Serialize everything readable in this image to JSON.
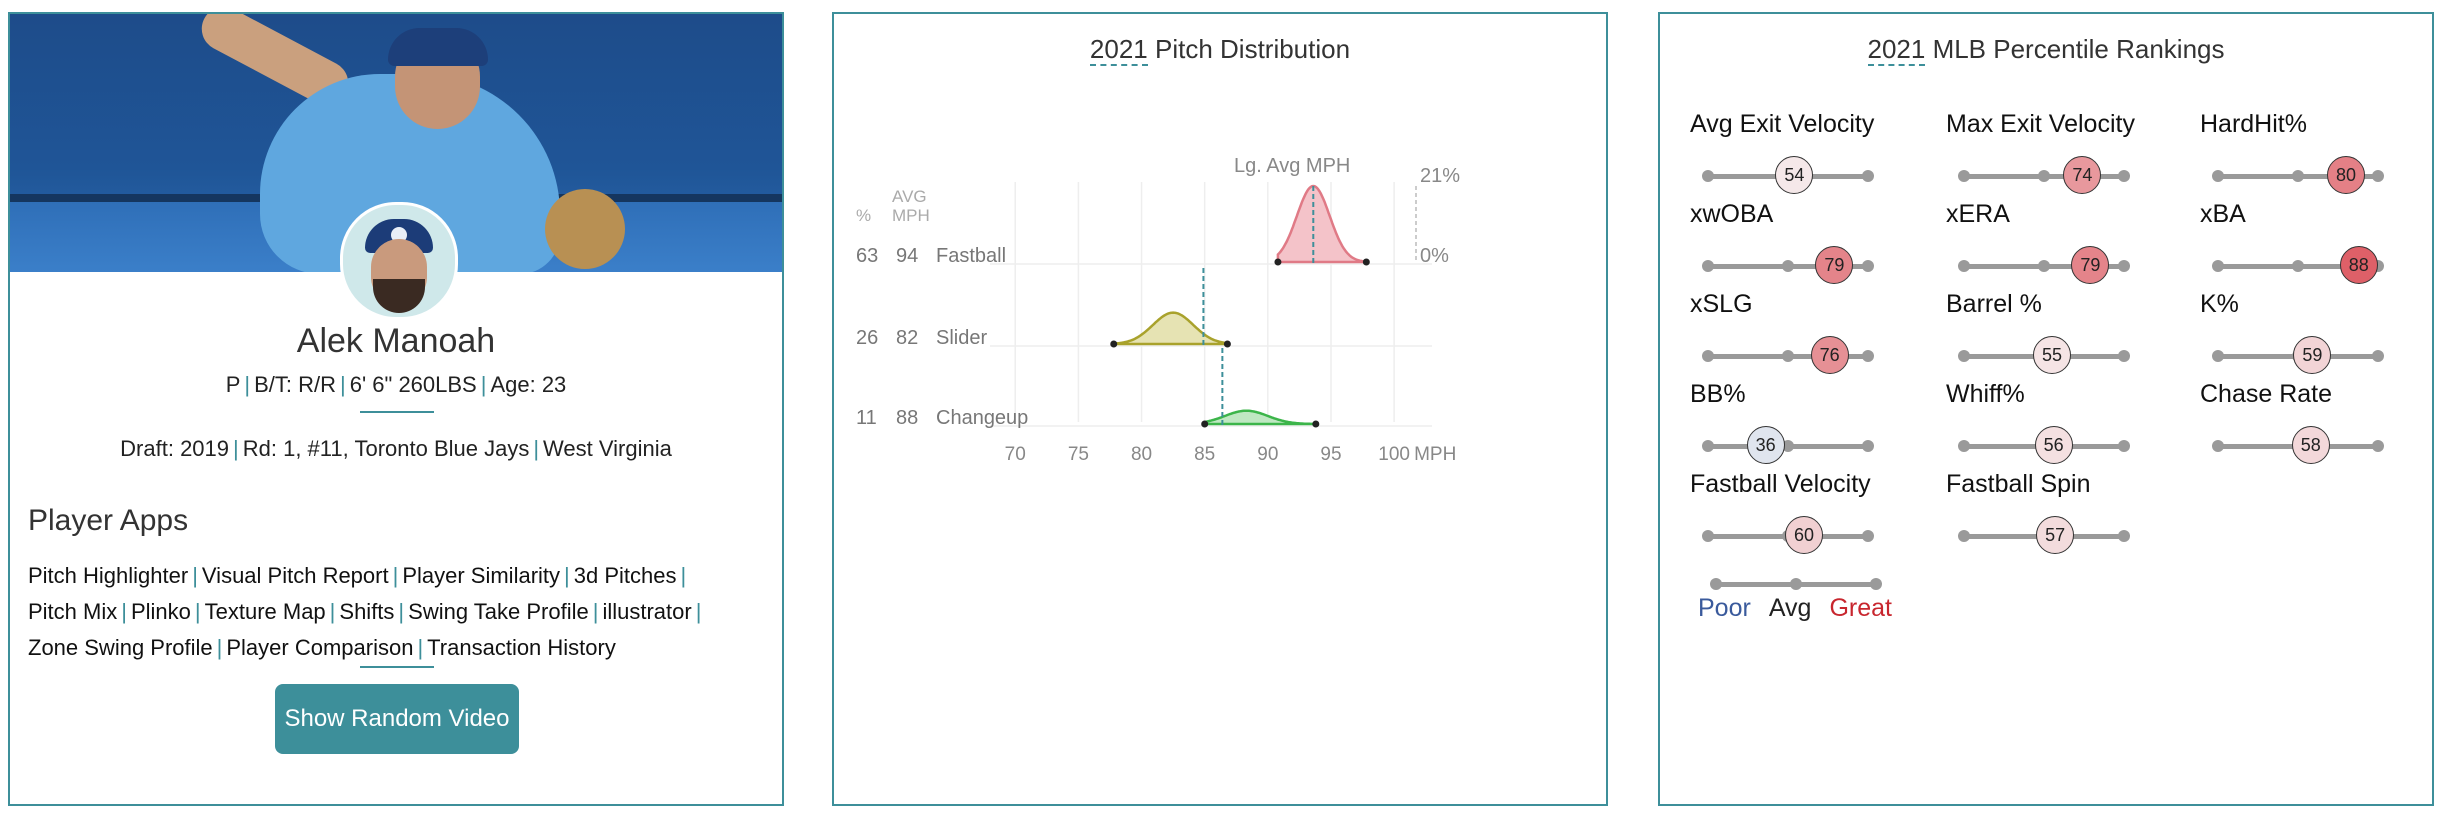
{
  "player": {
    "name": "Alek Manoah",
    "position": "P",
    "bat_throw": "B/T: R/R",
    "height_weight": "6' 6\" 260LBS",
    "age": "Age: 23",
    "draft_label": "Draft:",
    "draft_year": "2019",
    "draft_pick": "Rd: 1, #11,",
    "draft_team": "Toronto Blue Jays",
    "school": "West Virginia"
  },
  "apps": {
    "title": "Player Apps",
    "items": [
      "Pitch Highlighter",
      "Visual Pitch Report",
      "Player Similarity",
      "3d Pitches",
      "Pitch Mix",
      "Plinko",
      "Texture Map",
      "Shifts",
      "Swing Take Profile",
      "illustrator",
      "Zone Swing Profile",
      "Player Comparison",
      "Transaction History"
    ],
    "button_label": "Show Random Video"
  },
  "distribution": {
    "title_year": "2021",
    "title_rest": " Pitch Distribution",
    "col_pct": "%",
    "col_avg": "AVG",
    "col_mph": "MPH",
    "lg_avg_label": "Lg. Avg MPH",
    "max_label": "21%",
    "zero_label": "0%",
    "x_unit": "MPH",
    "chart_data": {
      "type": "area",
      "x_ticks": [
        70,
        75,
        80,
        85,
        90,
        95,
        100
      ],
      "xlim": [
        68,
        103
      ],
      "ylim_pct": [
        0,
        21
      ],
      "pitches": [
        {
          "name": "Fastball",
          "pct": "63",
          "avg": "94",
          "mean": 93.6,
          "sd": 1.3,
          "min": 90.8,
          "max": 97.8,
          "lg_avg": 93.6,
          "color": "#e07a86",
          "fill": "#f4c3c9"
        },
        {
          "name": "Slider",
          "pct": "26",
          "avg": "82",
          "mean": 82.5,
          "sd": 1.6,
          "min": 77.8,
          "max": 86.8,
          "lg_avg": 84.9,
          "color": "#a9a22c",
          "fill": "#e6e3b3"
        },
        {
          "name": "Changeup",
          "pct": "11",
          "avg": "88",
          "mean": 88.3,
          "sd": 1.7,
          "min": 85.0,
          "max": 93.8,
          "lg_avg": 86.4,
          "color": "#3cb54a",
          "fill": "#bfe8c2"
        }
      ]
    }
  },
  "percentiles": {
    "title_year": "2021",
    "title_rest": " MLB Percentile Rankings",
    "items": [
      {
        "label": "Avg Exit Velocity",
        "value": 54
      },
      {
        "label": "Max Exit Velocity",
        "value": 74
      },
      {
        "label": "HardHit%",
        "value": 80
      },
      {
        "label": "xwOBA",
        "value": 79
      },
      {
        "label": "xERA",
        "value": 79
      },
      {
        "label": "xBA",
        "value": 88
      },
      {
        "label": "xSLG",
        "value": 76
      },
      {
        "label": "Barrel %",
        "value": 55
      },
      {
        "label": "K%",
        "value": 59
      },
      {
        "label": "BB%",
        "value": 36
      },
      {
        "label": "Whiff%",
        "value": 56
      },
      {
        "label": "Chase Rate",
        "value": 58
      },
      {
        "label": "Fastball Velocity",
        "value": 60
      },
      {
        "label": "Fastball Spin",
        "value": 57
      }
    ],
    "legend": {
      "poor": "Poor",
      "avg": "Avg",
      "great": "Great",
      "poor_color": "#3a5a9c",
      "great_color": "#c8262e"
    }
  }
}
